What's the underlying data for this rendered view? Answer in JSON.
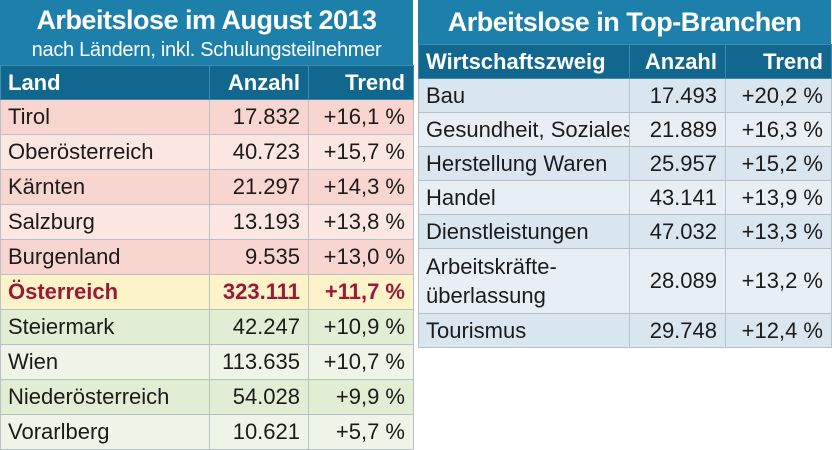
{
  "left": {
    "title": "Arbeitslose im August 2013",
    "subtitle": "nach Ländern, inkl. Schulungsteilnehmer",
    "headers": [
      "Land",
      "Anzahl",
      "Trend"
    ],
    "rows": [
      {
        "name": "Tirol",
        "count": "17.832",
        "trend": "+16,1 %"
      },
      {
        "name": "Oberösterreich",
        "count": "40.723",
        "trend": "+15,7 %"
      },
      {
        "name": "Kärnten",
        "count": "21.297",
        "trend": "+14,3 %"
      },
      {
        "name": "Salzburg",
        "count": "13.193",
        "trend": "+13,8 %"
      },
      {
        "name": "Burgenland",
        "count": "9.535",
        "trend": "+13,0 %"
      },
      {
        "name": "Österreich",
        "count": "323.111",
        "trend": "+11,7 %"
      },
      {
        "name": "Steiermark",
        "count": "42.247",
        "trend": "+10,9 %"
      },
      {
        "name": "Wien",
        "count": "113.635",
        "trend": "+10,7 %"
      },
      {
        "name": "Niederösterreich",
        "count": "54.028",
        "trend": "+9,9 %"
      },
      {
        "name": "Vorarlberg",
        "count": "10.621",
        "trend": "+5,7 %"
      }
    ]
  },
  "right": {
    "title": "Arbeitslose in Top-Branchen",
    "headers": [
      "Wirtschaftszweig",
      "Anzahl",
      "Trend"
    ],
    "rows": [
      {
        "name": "Bau",
        "count": "17.493",
        "trend": "+20,2 %"
      },
      {
        "name": "Gesundheit, Soziales",
        "count": "21.889",
        "trend": "+16,3 %"
      },
      {
        "name": "Herstellung Waren",
        "count": "25.957",
        "trend": "+15,2 %"
      },
      {
        "name": "Handel",
        "count": "43.141",
        "trend": "+13,9 %"
      },
      {
        "name": "Dienstleistungen",
        "count": "47.032",
        "trend": "+13,3 %"
      },
      {
        "name_line1": "Arbeitskräfte-",
        "name_line2": "überlassung",
        "count": "28.089",
        "trend": "+13,2 %"
      },
      {
        "name": "Tourismus",
        "count": "29.748",
        "trend": "+12,4 %"
      }
    ]
  },
  "colors": {
    "title_bg": "#1c80ab",
    "header_bg": "#11678e",
    "increase_high": "#f9d5cf",
    "national_total": "#fdf3c8",
    "national_total_text": "#9b1836",
    "increase_low": "#e1eed4",
    "sector_rows": "#d9e6ef"
  }
}
